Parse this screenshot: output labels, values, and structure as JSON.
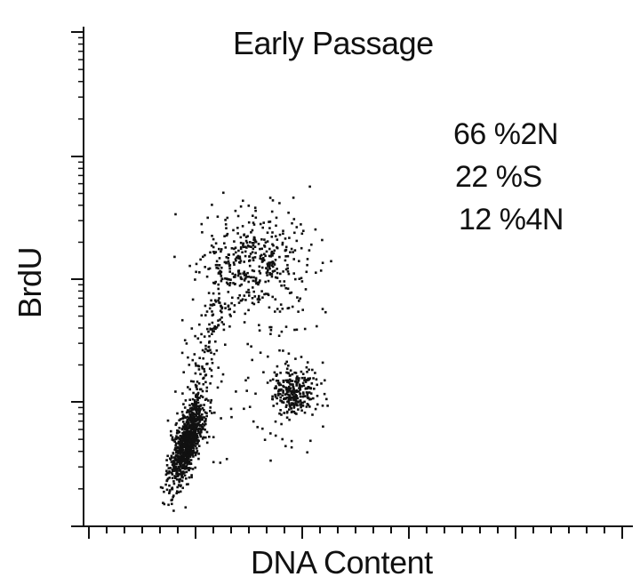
{
  "chart_data": {
    "type": "scatter",
    "title": "Early Passage",
    "xlabel": "DNA Content",
    "ylabel": "BrdU",
    "y_scale": "log",
    "grid": false,
    "annotations": [
      "66 %2N",
      "22 %S",
      "12 %4N"
    ],
    "populations": [
      {
        "name": "2N",
        "percent": 66
      },
      {
        "name": "S",
        "percent": 22
      },
      {
        "name": "4N",
        "percent": 12
      }
    ],
    "color": "#111111"
  }
}
